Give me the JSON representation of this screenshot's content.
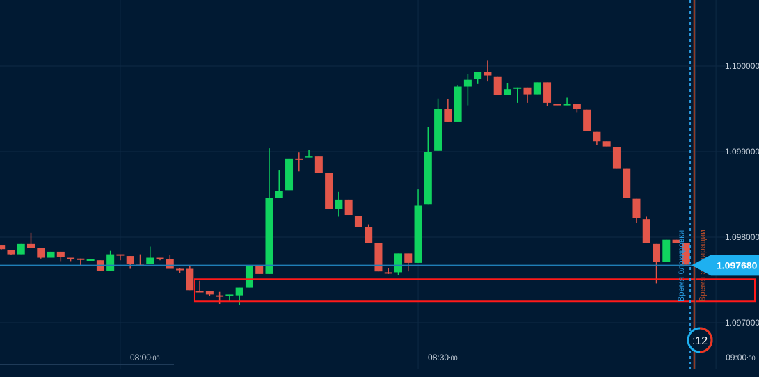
{
  "chart_data": {
    "type": "candlestick",
    "title": "",
    "interval_minutes": 1,
    "start_time": "07:48",
    "x_ticks": [
      {
        "label": "08:00",
        "label_suffix": ":00",
        "minute_offset": 12
      },
      {
        "label": "08:30",
        "label_suffix": ":00",
        "minute_offset": 42
      },
      {
        "label": "09:00",
        "label_suffix": ":00",
        "minute_offset": 72
      }
    ],
    "y_ticks": [
      "1.100000",
      "1.099000",
      "1.098000",
      "1.097000"
    ],
    "y_tick_values": [
      1.1,
      1.099,
      1.098,
      1.097
    ],
    "ylim": [
      1.09664,
      1.10077
    ],
    "grid": true,
    "colors": {
      "up": "#10d35f",
      "down": "#e2564a",
      "background": "#011a33",
      "grid": "#0e2a45",
      "price_line": "#1f7fb8",
      "price_tag": "#1eb0f0",
      "zone": "#ff1a1a",
      "lock_line": "#2a9be0",
      "expiry_line": "#c0461f"
    },
    "candles": [
      [
        1.09791,
        1.09791,
        1.09785,
        1.09786
      ],
      [
        1.09785,
        1.09785,
        1.09779,
        1.0978
      ],
      [
        1.0978,
        1.09792,
        1.0978,
        1.09792
      ],
      [
        1.09792,
        1.09805,
        1.09787,
        1.09787
      ],
      [
        1.09787,
        1.09787,
        1.09775,
        1.09776
      ],
      [
        1.09776,
        1.09783,
        1.09776,
        1.09783
      ],
      [
        1.09783,
        1.09783,
        1.09772,
        1.09777
      ],
      [
        1.09776,
        1.09776,
        1.09772,
        1.09775
      ],
      [
        1.09775,
        1.09775,
        1.09767,
        1.09774
      ],
      [
        1.09773,
        1.09774,
        1.09773,
        1.09774
      ],
      [
        1.09773,
        1.09773,
        1.09761,
        1.09761
      ],
      [
        1.09761,
        1.09784,
        1.09761,
        1.0978
      ],
      [
        1.0978,
        1.0978,
        1.09773,
        1.09779
      ],
      [
        1.09778,
        1.09778,
        1.09763,
        1.09769
      ],
      [
        1.09768,
        1.0978,
        1.09767,
        1.09767
      ],
      [
        1.09769,
        1.09789,
        1.09769,
        1.09776
      ],
      [
        1.09776,
        1.09776,
        1.09773,
        1.09775
      ],
      [
        1.09774,
        1.09779,
        1.09763,
        1.09763
      ],
      [
        1.09763,
        1.09764,
        1.09758,
        1.09762
      ],
      [
        1.09763,
        1.09767,
        1.09738,
        1.09738
      ],
      [
        1.09737,
        1.09749,
        1.09736,
        1.09736
      ],
      [
        1.09737,
        1.09737,
        1.09731,
        1.09733
      ],
      [
        1.09732,
        1.09736,
        1.09722,
        1.09731
      ],
      [
        1.09731,
        1.09733,
        1.09725,
        1.09733
      ],
      [
        1.09732,
        1.09741,
        1.09721,
        1.09741
      ],
      [
        1.09741,
        1.09767,
        1.09741,
        1.09767
      ],
      [
        1.09767,
        1.09767,
        1.09757,
        1.09757
      ],
      [
        1.09757,
        1.09904,
        1.09757,
        1.09846
      ],
      [
        1.09846,
        1.09878,
        1.09846,
        1.09854
      ],
      [
        1.09855,
        1.09892,
        1.09855,
        1.09892
      ],
      [
        1.09892,
        1.09899,
        1.09877,
        1.09891
      ],
      [
        1.09893,
        1.09902,
        1.09893,
        1.09895
      ],
      [
        1.09895,
        1.09895,
        1.09875,
        1.09875
      ],
      [
        1.09875,
        1.09875,
        1.09833,
        1.09833
      ],
      [
        1.09833,
        1.09853,
        1.09824,
        1.09844
      ],
      [
        1.09844,
        1.09844,
        1.09826,
        1.09826
      ],
      [
        1.09825,
        1.09825,
        1.09812,
        1.09812
      ],
      [
        1.09812,
        1.09815,
        1.09793,
        1.09793
      ],
      [
        1.09793,
        1.09793,
        1.0976,
        1.0976
      ],
      [
        1.09759,
        1.09764,
        1.09757,
        1.09758
      ],
      [
        1.09759,
        1.09781,
        1.09756,
        1.09781
      ],
      [
        1.09781,
        1.09781,
        1.0976,
        1.0977
      ],
      [
        1.0977,
        1.09856,
        1.0977,
        1.09837
      ],
      [
        1.09838,
        1.09929,
        1.09838,
        1.099
      ],
      [
        1.09901,
        1.09962,
        1.09901,
        1.0995
      ],
      [
        1.0995,
        1.09961,
        1.09935,
        1.09935
      ],
      [
        1.09935,
        1.09978,
        1.09935,
        1.09976
      ],
      [
        1.09976,
        1.09991,
        1.09954,
        1.09984
      ],
      [
        1.09985,
        1.09993,
        1.09979,
        1.09993
      ],
      [
        1.09993,
        1.10007,
        1.09982,
        1.09989
      ],
      [
        1.09988,
        1.09988,
        1.09966,
        1.09966
      ],
      [
        1.09966,
        1.0998,
        1.09966,
        1.09973
      ],
      [
        1.09974,
        1.09975,
        1.09957,
        1.09975
      ],
      [
        1.09975,
        1.09975,
        1.09957,
        1.09967
      ],
      [
        1.09967,
        1.09981,
        1.09967,
        1.09981
      ],
      [
        1.09981,
        1.09981,
        1.09953,
        1.09957
      ],
      [
        1.09956,
        1.09956,
        1.09954,
        1.09954
      ],
      [
        1.09954,
        1.09963,
        1.09954,
        1.09956
      ],
      [
        1.09956,
        1.09956,
        1.09946,
        1.0995
      ],
      [
        1.09949,
        1.09949,
        1.09924,
        1.09924
      ],
      [
        1.09923,
        1.09923,
        1.09908,
        1.09912
      ],
      [
        1.09912,
        1.09912,
        1.09906,
        1.09906
      ],
      [
        1.09905,
        1.09905,
        1.0988,
        1.0988
      ],
      [
        1.0988,
        1.0988,
        1.09846,
        1.09846
      ],
      [
        1.09845,
        1.09845,
        1.09817,
        1.09822
      ],
      [
        1.09821,
        1.09824,
        1.09793,
        1.09793
      ],
      [
        1.09792,
        1.09792,
        1.09746,
        1.09771
      ],
      [
        1.09771,
        1.09797,
        1.09771,
        1.09797
      ],
      [
        1.09797,
        1.09797,
        1.09793,
        1.09793
      ],
      [
        1.09793,
        1.09793,
        1.09768,
        1.09768
      ]
    ],
    "candle_format": "open,high,low,close",
    "current_price": 1.09768,
    "current_price_label": "1.097680",
    "highlight_zone": {
      "top": 1.09751,
      "bottom": 1.09725,
      "start_minute_offset": 19.5
    },
    "lock_time_label": "Время блокировки",
    "expiry_time_label": "Время экспирации",
    "lock_minute_offset": 69.4,
    "expiry_minute_offset": 69.8,
    "countdown": ":12",
    "countdown_fraction_remaining": 0.5
  }
}
